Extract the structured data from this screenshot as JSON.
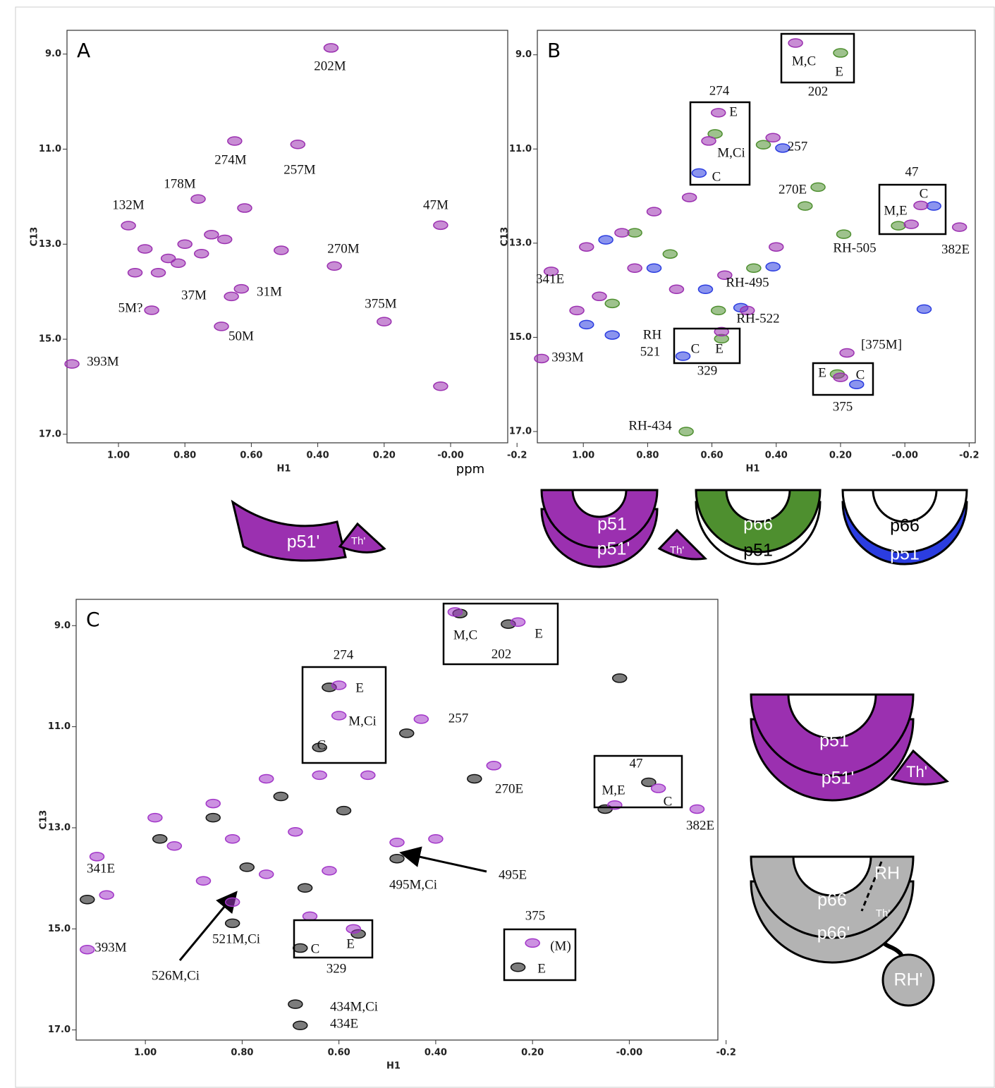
{
  "chart_data": [
    {
      "type": "scatter",
      "panel_label": "A",
      "x_label": "H1",
      "y_label": "C13",
      "x_unit": "ppm",
      "xlim": [
        1.155,
        -0.172
      ],
      "ylim": [
        8.5,
        17.18
      ],
      "xticks": [
        {
          "value": 1,
          "label": "1.00"
        },
        {
          "value": 0.8,
          "label": "0.80"
        },
        {
          "value": 0.6,
          "label": "0.60"
        },
        {
          "value": 0.4,
          "label": "0.40"
        },
        {
          "value": 0.2,
          "label": "0.20"
        },
        {
          "value": 0,
          "label": "-0.00"
        },
        -0.2
      ],
      "yticks": [
        {
          "value": 9,
          "label": "9.0"
        },
        {
          "value": 11,
          "label": "11.0"
        },
        {
          "value": 13,
          "label": "13.0"
        },
        {
          "value": 15,
          "label": "15.0"
        },
        {
          "value": 17,
          "label": "17.0"
        }
      ],
      "series": [
        {
          "color": "#9b30b0",
          "x": [
            0.36,
            0.65,
            0.46,
            0.76,
            0.97,
            0.03,
            0.92,
            0.85,
            0.8,
            0.75,
            0.72,
            0.68,
            0.88,
            0.95,
            0.82,
            0.62,
            0.35,
            0.51,
            0.63,
            0.66,
            0.9,
            0.69,
            0.2,
            1.14,
            0.03
          ],
          "values": [
            8.87,
            10.83,
            10.9,
            12.05,
            12.61,
            12.6,
            13.1,
            13.3,
            13.0,
            13.2,
            12.8,
            12.9,
            13.6,
            13.6,
            13.4,
            12.24,
            13.46,
            13.13,
            13.94,
            14.1,
            14.39,
            14.73,
            14.63,
            15.52,
            15.99
          ]
        }
      ],
      "annotations": [
        "202M",
        "274M",
        "257M",
        "178M",
        "132M",
        "47M",
        "270M",
        "31M",
        "37M",
        "5M?",
        "50M",
        "375M",
        "393M"
      ]
    },
    {
      "type": "scatter",
      "panel_label": "B",
      "x_label": "H1",
      "y_label": "C13",
      "xlim": [
        1.143,
        -0.219
      ],
      "ylim": [
        8.48,
        17.24
      ],
      "xticks": [
        {
          "value": 1,
          "label": "1.00"
        },
        {
          "value": 0.8,
          "label": "0.80"
        },
        {
          "value": 0.6,
          "label": "0.60"
        },
        {
          "value": 0.4,
          "label": "0.40"
        },
        {
          "value": 0.2,
          "label": "0.20"
        },
        {
          "value": 0,
          "label": "-0.00"
        },
        -0.2
      ],
      "yticks": [
        {
          "value": 9,
          "label": "9.0"
        },
        {
          "value": 11,
          "label": "11.0"
        },
        {
          "value": 13,
          "label": "13.0"
        },
        {
          "value": 15,
          "label": "15.0"
        },
        {
          "value": 17,
          "label": "17.0"
        }
      ],
      "series": [
        {
          "color": "#4e8f2f",
          "x": [
            0.2,
            0.59,
            0.44,
            0.27,
            0.31,
            0.02,
            0.68,
            0.57,
            0.21,
            0.19,
            0.47,
            0.58,
            0.84,
            0.73,
            0.91
          ],
          "values": [
            8.96,
            10.68,
            10.91,
            11.81,
            12.21,
            12.63,
            17.0,
            15.03,
            15.78,
            12.81,
            13.53,
            14.43,
            12.78,
            13.23,
            14.28
          ]
        },
        {
          "color": "#2b3de0",
          "x": [
            0.38,
            0.64,
            -0.09,
            0.41,
            0.51,
            0.15,
            0.69,
            0.99,
            0.91,
            -0.06,
            0.93,
            0.78,
            0.62
          ],
          "values": [
            10.98,
            11.51,
            12.21,
            13.5,
            14.37,
            16.0,
            15.4,
            14.73,
            14.95,
            14.4,
            12.93,
            13.53,
            13.98
          ]
        },
        {
          "color": "#9b30b0",
          "x": [
            0.34,
            0.58,
            0.61,
            0.41,
            -0.02,
            -0.05,
            -0.17,
            0.57,
            0.2,
            0.18,
            1.13,
            1.1,
            0.99,
            0.88,
            0.78,
            0.67,
            0.95,
            0.84,
            0.71,
            0.56,
            0.4,
            0.49,
            1.02
          ],
          "values": [
            8.75,
            10.23,
            10.83,
            10.76,
            12.6,
            12.2,
            12.66,
            14.88,
            15.85,
            15.33,
            15.45,
            13.6,
            13.08,
            12.78,
            12.33,
            12.03,
            14.13,
            13.53,
            13.98,
            13.68,
            13.08,
            14.43,
            14.43
          ]
        }
      ],
      "annotations": [
        "M,C",
        "E",
        "202",
        "274",
        "E",
        "M,Ci",
        "C",
        "257",
        "270E",
        "47",
        "C",
        "M,E",
        "382E",
        "RH-505",
        "RH-495",
        "RH-522",
        "RH",
        "521",
        "C",
        "E",
        "329",
        "[375M]",
        "E",
        "C",
        "375",
        "341E",
        "393M",
        "RH-434"
      ]
    },
    {
      "type": "scatter",
      "panel_label": "C",
      "x_label": "H1",
      "y_label": "C13",
      "xlim": [
        1.143,
        -0.183
      ],
      "ylim": [
        8.48,
        17.2
      ],
      "xticks": [
        {
          "value": 1,
          "label": "1.00"
        },
        {
          "value": 0.8,
          "label": "0.80"
        },
        {
          "value": 0.6,
          "label": "0.60"
        },
        {
          "value": 0.4,
          "label": "0.40"
        },
        {
          "value": 0.2,
          "label": "0.20"
        },
        {
          "value": 0,
          "label": "-0.00"
        },
        -0.2
      ],
      "yticks": [
        {
          "value": 9,
          "label": "9.0"
        },
        {
          "value": 11,
          "label": "11.0"
        },
        {
          "value": 13,
          "label": "13.0"
        },
        {
          "value": 15,
          "label": "15.0"
        },
        {
          "value": 17,
          "label": "17.0"
        }
      ],
      "series": [
        {
          "color": "#111111",
          "x": [
            0.25,
            0.35,
            0.62,
            0.46,
            0.64,
            0.32,
            0.05,
            -0.04,
            0.02,
            0.48,
            0.82,
            0.23,
            0.68,
            0.56,
            0.69,
            0.68,
            1.12,
            0.97,
            0.86,
            0.72,
            0.59,
            0.79,
            0.67
          ],
          "values": [
            8.97,
            8.76,
            10.22,
            11.13,
            11.41,
            12.03,
            12.63,
            12.1,
            10.04,
            13.61,
            14.89,
            15.76,
            15.38,
            15.1,
            16.49,
            16.91,
            14.42,
            13.22,
            12.8,
            12.38,
            12.66,
            13.78,
            14.19
          ]
        },
        {
          "color": "#a236c8",
          "x": [
            0.36,
            0.23,
            0.6,
            0.6,
            0.43,
            0.28,
            -0.06,
            0.03,
            -0.14,
            0.57,
            0.2,
            1.12,
            1.1,
            1.08,
            0.98,
            0.86,
            0.75,
            0.64,
            0.54,
            0.94,
            0.82,
            0.69,
            0.48,
            0.4,
            0.88,
            0.75,
            0.62,
            0.82,
            0.66
          ],
          "values": [
            8.73,
            8.93,
            10.18,
            10.78,
            10.85,
            11.77,
            12.22,
            12.55,
            12.63,
            15.0,
            15.28,
            15.41,
            13.57,
            14.33,
            12.8,
            12.52,
            12.03,
            11.96,
            11.96,
            13.36,
            13.22,
            13.08,
            13.29,
            13.22,
            14.05,
            13.92,
            13.85,
            14.47,
            14.75
          ]
        }
      ],
      "annotations": [
        "274",
        "202",
        "M,C",
        "E",
        "E",
        "M,Ci",
        "C",
        "257",
        "270E",
        "47",
        "M,E",
        "C",
        "382E",
        "341E",
        "495E",
        "495M,Ci",
        "521M,Ci",
        "526M,Ci",
        "C",
        "E",
        "329",
        "375",
        "(M)",
        "E",
        "393M",
        "434M,Ci",
        "434E"
      ]
    }
  ],
  "cartoons": [
    [
      "p51'",
      "Th'"
    ],
    [
      "p51",
      "p51'",
      "Th'",
      "p66",
      "p51",
      "p66",
      "p51"
    ],
    [
      "p51",
      "p51'",
      "Th'",
      "RH",
      "p66",
      "Th'",
      "p66'",
      "RH'"
    ]
  ]
}
